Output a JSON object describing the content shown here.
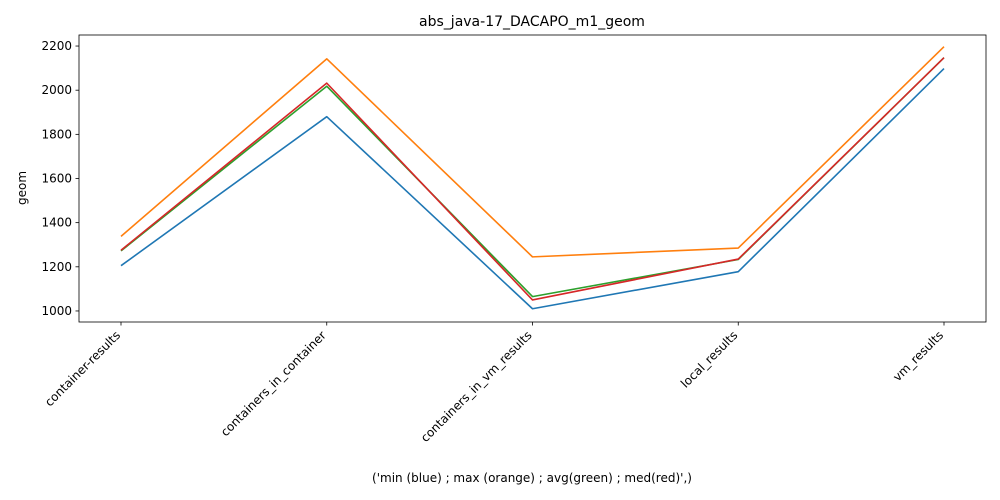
{
  "chart_data": {
    "type": "line",
    "title": "abs_java-17_DACAPO_m1_geom",
    "xlabel": "('min (blue) ; max (orange) ; avg(green) ; med(red)',)",
    "ylabel": "geom",
    "categories": [
      "container-results",
      "containers_in_container",
      "containers_in_vm_results",
      "local_results",
      "vm_results"
    ],
    "ylim": [
      950,
      2250
    ],
    "yticks": [
      1000,
      1200,
      1400,
      1600,
      1800,
      2000,
      2200
    ],
    "grid": false,
    "series": [
      {
        "color": "#1f77b4",
        "values": [
          1205,
          1880,
          1010,
          1178,
          2098
        ]
      },
      {
        "color": "#ff7f0e",
        "values": [
          1338,
          2142,
          1245,
          1285,
          2197
        ]
      },
      {
        "color": "#2ca02c",
        "values": [
          1272,
          2018,
          1065,
          1233,
          2147
        ]
      },
      {
        "color": "#d62728",
        "values": [
          1275,
          2032,
          1050,
          1235,
          2147
        ]
      }
    ]
  }
}
